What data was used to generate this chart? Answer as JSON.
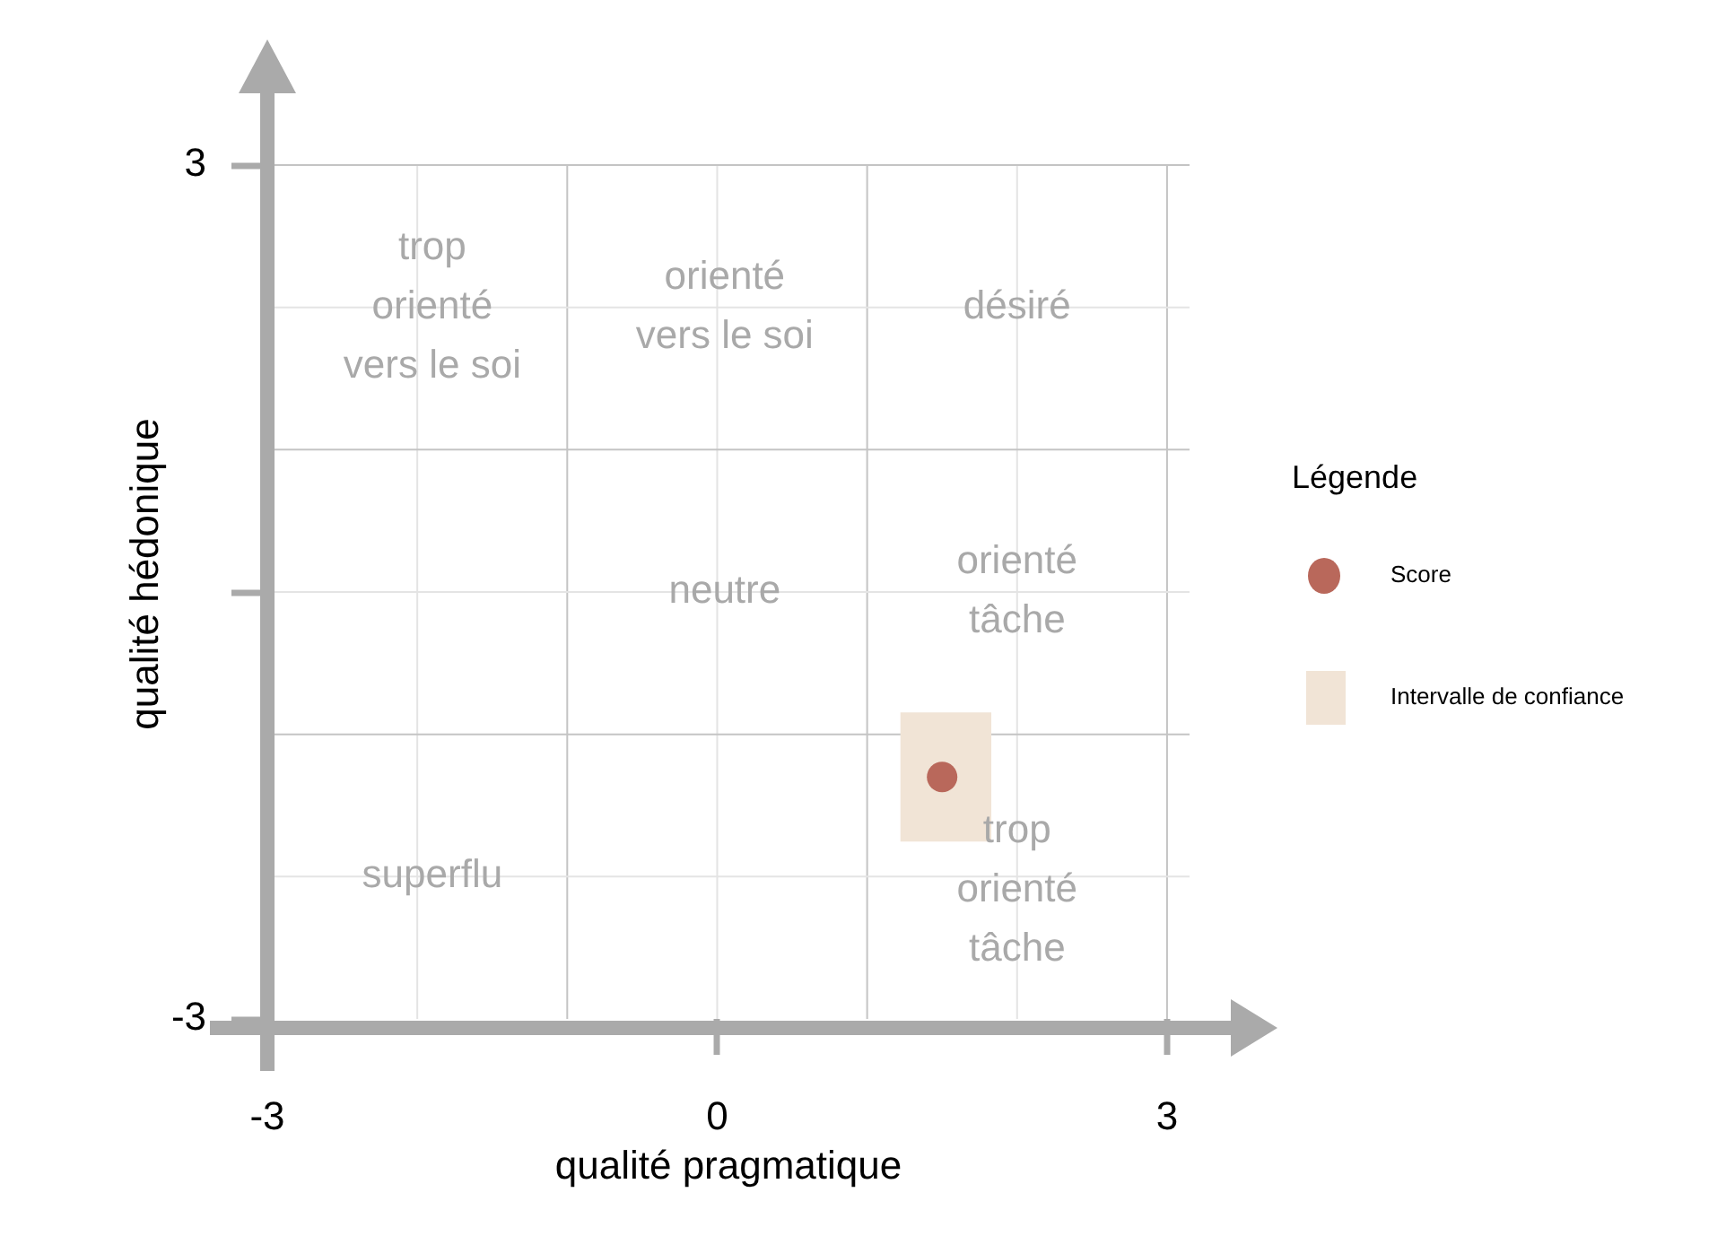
{
  "chart_data": {
    "type": "scatter",
    "xlabel": "qualité pragmatique",
    "ylabel": "qualité hédonique",
    "legend_title": "Légende",
    "legend": "right",
    "marker": "circle",
    "series": [
      {
        "name": "Score",
        "color": "#b9685b",
        "x": [
          1.5
        ],
        "values": [
          -1.3
        ]
      },
      {
        "name": "Intervalle de confiance",
        "type": "bar",
        "color": "#f1e4d6",
        "x": [
          1.525
        ],
        "base": [
          -1.75
        ],
        "values": [
          0.9
        ]
      }
    ],
    "xlim": [
      -3,
      3.15
    ],
    "ylim": [
      -3,
      3
    ],
    "xticks": [
      -3,
      0,
      3
    ],
    "yticks": [
      -3,
      {
        "value": 0,
        "label": null
      },
      3
    ],
    "ref_lines": [
      {
        "axis": "x",
        "value": -2,
        "color": "#e4e4e4"
      },
      {
        "axis": "x",
        "value": -1,
        "color": "#c4c4c4"
      },
      {
        "axis": "x",
        "value": 0,
        "color": "#e4e4e4"
      },
      {
        "axis": "x",
        "value": 1,
        "color": "#c4c4c4"
      },
      {
        "axis": "x",
        "value": 2,
        "color": "#e4e4e4"
      },
      {
        "axis": "x",
        "value": 3,
        "color": "#c4c4c4"
      },
      {
        "axis": "y",
        "value": -2,
        "color": "#e4e4e4"
      },
      {
        "axis": "y",
        "value": -1,
        "color": "#c4c4c4"
      },
      {
        "axis": "y",
        "value": 0,
        "color": "#e4e4e4"
      },
      {
        "axis": "y",
        "value": 1,
        "color": "#c4c4c4"
      },
      {
        "axis": "y",
        "value": 2,
        "color": "#e4e4e4"
      },
      {
        "axis": "y",
        "value": 3,
        "color": "#c4c4c4"
      }
    ],
    "annotations": [
      {
        "text": "trop\norienté\nvers le soi",
        "x": -1.9,
        "y": 2
      },
      {
        "text": "orienté\nvers le soi",
        "x": 0.05,
        "y": 2
      },
      {
        "text": "désiré",
        "x": 2,
        "y": 2
      },
      {
        "text": "neutre",
        "x": 0.05,
        "y": 0
      },
      {
        "text": "orienté\ntâche",
        "x": 2,
        "y": 0
      },
      {
        "text": "superflu",
        "x": -1.9,
        "y": -2
      },
      {
        "text": "trop\norienté\ntâche",
        "x": 2,
        "y": -2.1
      }
    ]
  }
}
